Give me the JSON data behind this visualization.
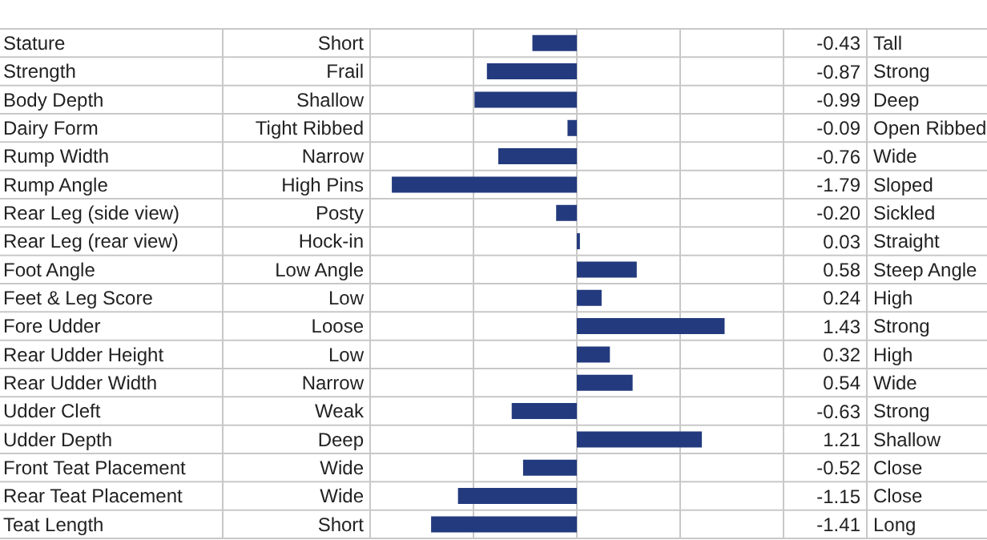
{
  "chart_data": {
    "type": "bar",
    "orientation": "horizontal",
    "categories": [
      "Stature",
      "Strength",
      "Body Depth",
      "Dairy Form",
      "Rump Width",
      "Rump Angle",
      "Rear Leg (side view)",
      "Rear Leg (rear view)",
      "Foot Angle",
      "Feet & Leg Score",
      "Fore Udder",
      "Rear Udder Height",
      "Rear Udder Width",
      "Udder Cleft",
      "Udder Depth",
      "Front Teat Placement",
      "Rear Teat Placement",
      "Teat Length"
    ],
    "values": [
      -0.43,
      -0.87,
      -0.99,
      -0.09,
      -0.76,
      -1.79,
      -0.2,
      0.03,
      0.58,
      0.24,
      1.43,
      0.32,
      0.54,
      -0.63,
      1.21,
      -0.52,
      -1.15,
      -1.41
    ],
    "value_labels": [
      "-0.43",
      "-0.87",
      "-0.99",
      "-0.09",
      "-0.76",
      "-1.79",
      "-0.20",
      "0.03",
      "0.58",
      "0.24",
      "1.43",
      "0.32",
      "0.54",
      "-0.63",
      "1.21",
      "-0.52",
      "-1.15",
      "-1.41"
    ],
    "color": "#233a7e",
    "xlim": [
      -2,
      2
    ],
    "grid": "x",
    "tick_labels": "y",
    "legend": false,
    "annotations": [
      "Short",
      "Frail",
      "Shallow",
      "Tight Ribbed",
      "Narrow",
      "High Pins",
      "Posty",
      "Hock-in",
      "Low Angle",
      "Low",
      "Loose",
      "Low",
      "Narrow",
      "Weak",
      "Deep",
      "Wide",
      "Wide",
      "Short",
      "Tall",
      "Strong",
      "Deep",
      "Open Ribbed",
      "Wide",
      "Sloped",
      "Sickled",
      "Straight",
      "Steep Angle",
      "High",
      "Strong",
      "High",
      "Wide",
      "Strong",
      "Shallow",
      "Close",
      "Close",
      "Long"
    ]
  }
}
